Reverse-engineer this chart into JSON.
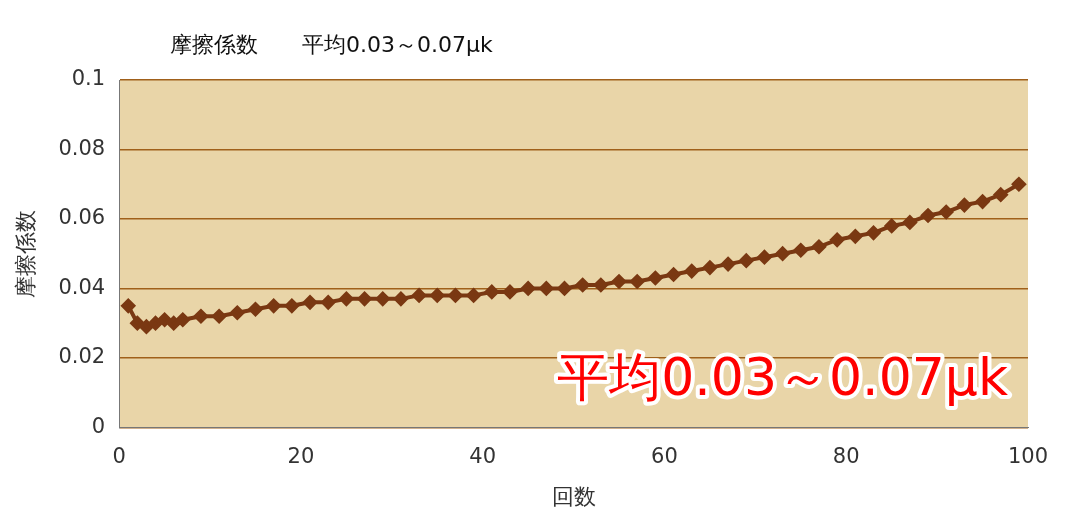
{
  "chart_data": {
    "type": "line",
    "title": "摩擦係数　　平均0.03～0.07μk",
    "xlabel": "回数",
    "ylabel": "摩擦係数",
    "annotations": [
      "平均0.03～0.07μk"
    ],
    "x": [
      1,
      2,
      3,
      4,
      5,
      6,
      7,
      9,
      11,
      13,
      15,
      17,
      19,
      21,
      23,
      25,
      27,
      29,
      31,
      33,
      35,
      37,
      39,
      41,
      43,
      45,
      47,
      49,
      51,
      53,
      55,
      57,
      59,
      61,
      63,
      65,
      67,
      69,
      71,
      73,
      75,
      77,
      79,
      81,
      83,
      85,
      87,
      89,
      91,
      93,
      95,
      97,
      99
    ],
    "series": [
      {
        "color": "#7a3812",
        "values": [
          0.035,
          0.03,
          0.029,
          0.03,
          0.031,
          0.03,
          0.031,
          0.032,
          0.032,
          0.033,
          0.034,
          0.035,
          0.035,
          0.036,
          0.036,
          0.037,
          0.037,
          0.037,
          0.037,
          0.038,
          0.038,
          0.038,
          0.038,
          0.039,
          0.039,
          0.04,
          0.04,
          0.04,
          0.041,
          0.041,
          0.042,
          0.042,
          0.043,
          0.044,
          0.045,
          0.046,
          0.047,
          0.048,
          0.049,
          0.05,
          0.051,
          0.052,
          0.054,
          0.055,
          0.056,
          0.058,
          0.059,
          0.061,
          0.062,
          0.064,
          0.065,
          0.067,
          0.07
        ]
      }
    ],
    "xlim": [
      0,
      100
    ],
    "xticks": [
      0,
      20,
      40,
      60,
      80,
      100
    ],
    "ylim": [
      0,
      0.1
    ],
    "yticks": [
      0,
      0.02,
      0.04,
      0.06,
      0.08,
      0.1
    ],
    "grid": "y",
    "legend": false,
    "marker": "diamond"
  }
}
